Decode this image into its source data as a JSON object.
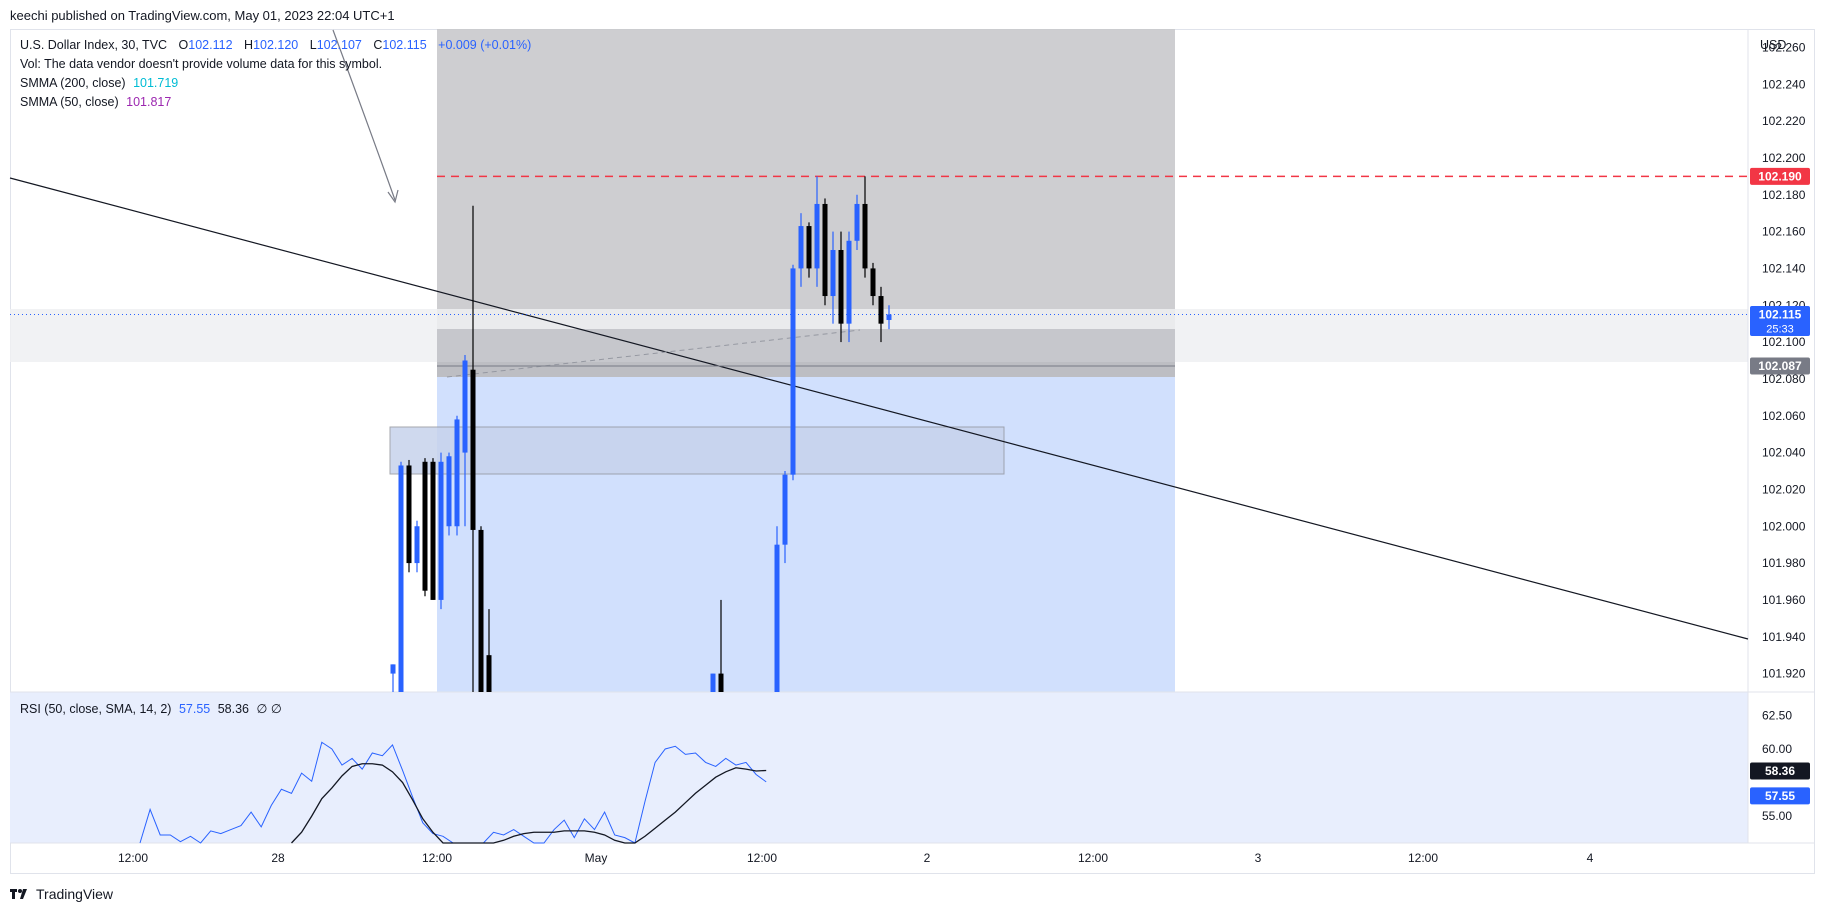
{
  "header": {
    "published": "keechi published on TradingView.com, May 01, 2023 22:04 UTC+1"
  },
  "legend": {
    "symbol": "U.S. Dollar Index, 30, TVC",
    "o_label": "O",
    "o_value": "102.112",
    "h_label": "H",
    "h_value": "102.120",
    "l_label": "L",
    "l_value": "102.107",
    "c_label": "C",
    "c_value": "102.115",
    "change": "+0.009 (+0.01%)",
    "vol": "Vol: The data vendor doesn't provide volume data for this symbol.",
    "smma200_label": "SMMA (200, close)",
    "smma200_value": "101.719",
    "smma50_label": "SMMA (50, close)",
    "smma50_value": "101.817",
    "rsi_label": "RSI (50, close, SMA, 14, 2)",
    "rsi_value": "57.55",
    "rsi_ma_value": "58.36",
    "rsi_extra": "∅  ∅"
  },
  "axis": {
    "currency": "USD",
    "price_ticks": [
      "102.260",
      "102.240",
      "102.220",
      "102.200",
      "102.180",
      "102.160",
      "102.140",
      "102.120",
      "102.100",
      "102.080",
      "102.060",
      "102.040",
      "102.020",
      "102.000",
      "101.980",
      "101.960",
      "101.940",
      "101.920"
    ],
    "rsi_ticks": [
      "62.50",
      "60.00",
      "55.00"
    ],
    "time_ticks": [
      "12:00",
      "28",
      "12:00",
      "May",
      "12:00",
      "2",
      "12:00",
      "3",
      "12:00",
      "4"
    ]
  },
  "price_labels": {
    "red_line": "102.190",
    "current": "102.115",
    "countdown": "25:33",
    "entry": "102.087",
    "rsi_ma": "58.36",
    "rsi": "57.55"
  },
  "footer": {
    "brand": "TradingView"
  },
  "colors": {
    "up": "#2962ff",
    "down": "#000000",
    "red": "#f23645",
    "rsi": "#2962ff",
    "pos_bg": "#d1e0fd",
    "loss_bg": "#c9c9cc"
  },
  "chart_data": {
    "type": "candlestick",
    "symbol": "U.S. Dollar Index, 30, TVC",
    "y_range": [
      101.91,
      102.27
    ],
    "candles": [
      {
        "i": 0,
        "o": 101.92,
        "h": 101.925,
        "l": 101.9,
        "c": 101.925
      },
      {
        "i": 1,
        "o": 101.9,
        "h": 102.035,
        "l": 101.9,
        "c": 102.033
      },
      {
        "i": 2,
        "o": 102.033,
        "h": 102.036,
        "l": 101.975,
        "c": 101.98
      },
      {
        "i": 3,
        "o": 101.98,
        "h": 102.003,
        "l": 101.975,
        "c": 102.0
      },
      {
        "i": 4,
        "o": 102.035,
        "h": 102.037,
        "l": 101.962,
        "c": 101.965
      },
      {
        "i": 5,
        "o": 102.035,
        "h": 102.037,
        "l": 101.96,
        "c": 101.96
      },
      {
        "i": 6,
        "o": 101.96,
        "h": 102.04,
        "l": 101.955,
        "c": 102.035
      },
      {
        "i": 7,
        "o": 102.0,
        "h": 102.04,
        "l": 101.995,
        "c": 102.038
      },
      {
        "i": 8,
        "o": 102.0,
        "h": 102.06,
        "l": 101.995,
        "c": 102.058
      },
      {
        "i": 9,
        "o": 102.04,
        "h": 102.093,
        "l": 102.0,
        "c": 102.09
      },
      {
        "i": 10,
        "o": 102.085,
        "h": 102.174,
        "l": 101.9,
        "c": 101.998
      },
      {
        "i": 11,
        "o": 101.998,
        "h": 102.0,
        "l": 101.9,
        "c": 101.91
      },
      {
        "i": 12,
        "o": 101.93,
        "h": 101.955,
        "l": 101.9,
        "c": 101.9
      },
      {
        "i": 40,
        "o": 101.905,
        "h": 101.92,
        "l": 101.9,
        "c": 101.92
      },
      {
        "i": 41,
        "o": 101.92,
        "h": 101.96,
        "l": 101.9,
        "c": 101.905
      },
      {
        "i": 48,
        "o": 101.9,
        "h": 102.0,
        "l": 101.9,
        "c": 101.99
      },
      {
        "i": 49,
        "o": 101.99,
        "h": 102.03,
        "l": 101.98,
        "c": 102.028
      },
      {
        "i": 50,
        "o": 102.028,
        "h": 102.142,
        "l": 102.025,
        "c": 102.14
      },
      {
        "i": 51,
        "o": 102.14,
        "h": 102.17,
        "l": 102.13,
        "c": 102.163
      },
      {
        "i": 52,
        "o": 102.163,
        "h": 102.165,
        "l": 102.135,
        "c": 102.14
      },
      {
        "i": 53,
        "o": 102.14,
        "h": 102.19,
        "l": 102.13,
        "c": 102.175
      },
      {
        "i": 54,
        "o": 102.175,
        "h": 102.178,
        "l": 102.12,
        "c": 102.125
      },
      {
        "i": 55,
        "o": 102.125,
        "h": 102.16,
        "l": 102.11,
        "c": 102.15
      },
      {
        "i": 56,
        "o": 102.15,
        "h": 102.16,
        "l": 102.1,
        "c": 102.11
      },
      {
        "i": 57,
        "o": 102.11,
        "h": 102.16,
        "l": 102.1,
        "c": 102.155
      },
      {
        "i": 58,
        "o": 102.155,
        "h": 102.18,
        "l": 102.15,
        "c": 102.175
      },
      {
        "i": 59,
        "o": 102.175,
        "h": 102.19,
        "l": 102.135,
        "c": 102.14
      },
      {
        "i": 60,
        "o": 102.14,
        "h": 102.143,
        "l": 102.12,
        "c": 102.125
      },
      {
        "i": 61,
        "o": 102.125,
        "h": 102.13,
        "l": 102.1,
        "c": 102.11
      },
      {
        "i": 62,
        "o": 102.112,
        "h": 102.12,
        "l": 102.107,
        "c": 102.115
      }
    ],
    "levels": {
      "red_dashed": 102.19,
      "current": 102.115,
      "entry": 102.087
    },
    "rsi": {
      "range": [
        53.0,
        63.2
      ],
      "rsi_series": [
        53.0,
        55.5,
        53.6,
        53.6,
        53.1,
        53.5,
        53.0,
        53.9,
        53.7,
        54.0,
        54.3,
        55.3,
        54.2,
        55.8,
        57.0,
        56.7,
        58.2,
        57.6,
        60.5,
        60.0,
        58.8,
        59.3,
        58.5,
        59.7,
        59.5,
        60.3,
        58.4,
        56.4,
        54.5,
        53.7,
        53.5,
        52.5,
        52.0,
        52.2,
        52.5,
        53.8,
        53.6,
        54.0,
        53.5,
        52.5,
        53.0,
        54.0,
        54.7,
        53.4,
        54.8,
        54.0,
        55.3,
        53.6,
        53.4,
        53.0,
        56.1,
        59.0,
        60.0,
        60.2,
        59.6,
        59.7,
        59.0,
        58.7,
        59.3,
        58.8,
        59.0,
        58.1,
        57.55
      ],
      "rsi_ma_series": [
        null,
        null,
        null,
        null,
        null,
        null,
        null,
        null,
        null,
        null,
        null,
        null,
        null,
        null,
        null,
        53.0,
        53.8,
        55.0,
        56.3,
        57.1,
        58.0,
        58.7,
        58.9,
        58.9,
        58.8,
        58.3,
        57.5,
        56.2,
        54.8,
        53.8,
        53.0,
        52.5,
        52.2,
        52.3,
        52.6,
        53.0,
        53.2,
        53.5,
        53.7,
        53.8,
        53.8,
        53.8,
        53.9,
        53.9,
        53.9,
        53.8,
        53.6,
        53.2,
        52.9,
        53.0,
        53.5,
        54.1,
        54.7,
        55.3,
        56.0,
        56.7,
        57.3,
        57.9,
        58.3,
        58.6,
        58.5,
        58.36,
        58.4
      ]
    }
  }
}
